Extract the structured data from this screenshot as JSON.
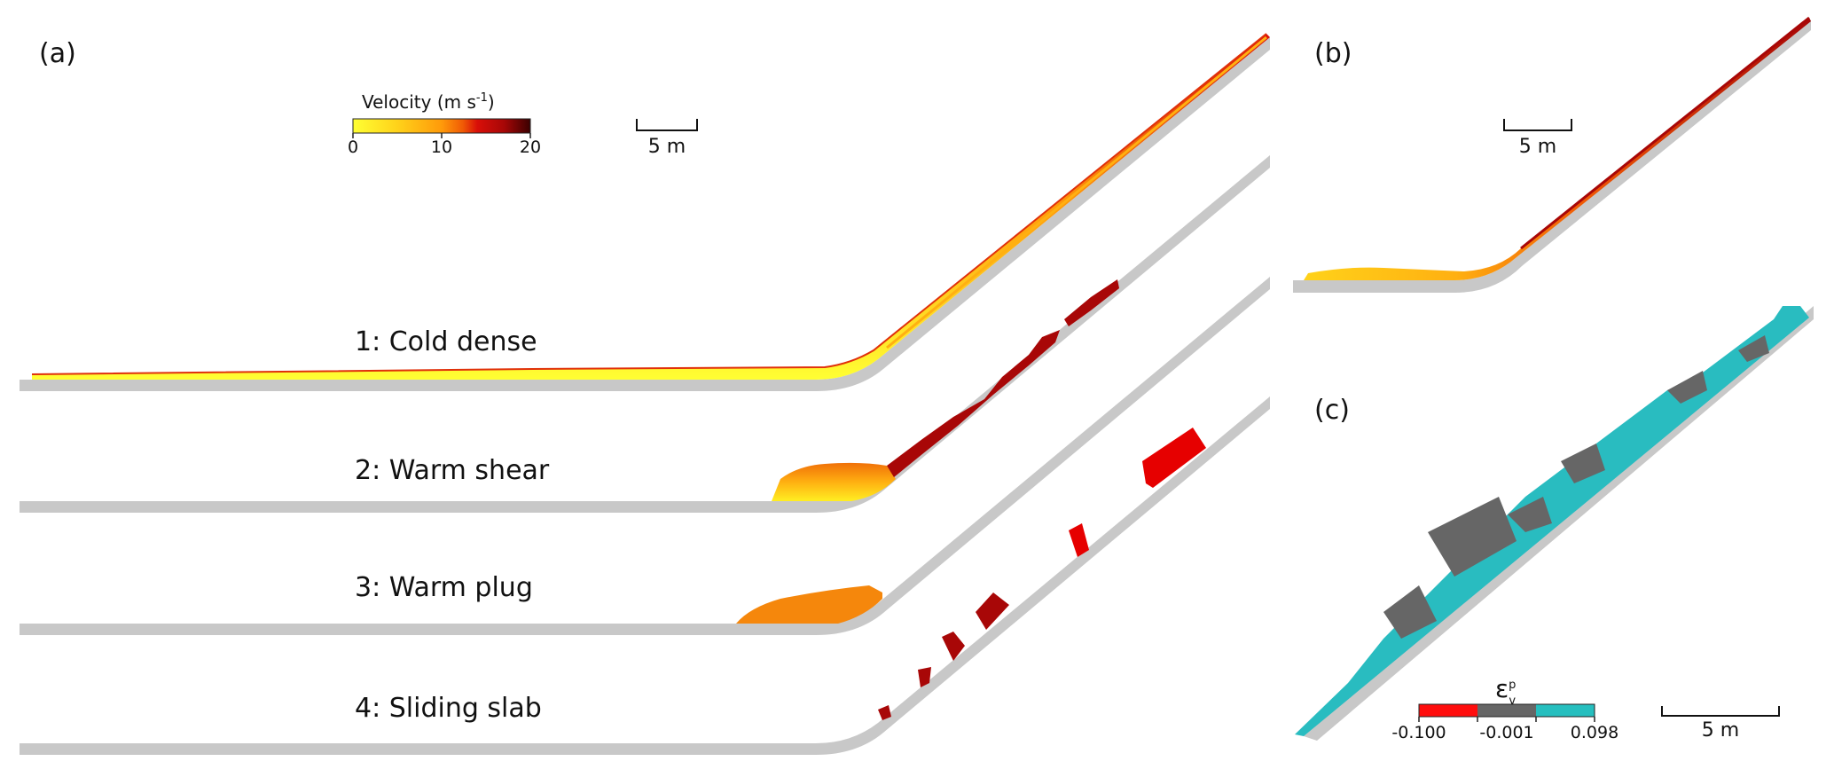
{
  "panels": {
    "a": "(a)",
    "b": "(b)",
    "c": "(c)"
  },
  "cases": [
    "1: Cold dense",
    "2: Warm shear",
    "3: Warm plug",
    "4: Sliding slab"
  ],
  "velocity_colorbar": {
    "title": "Velocity (m s",
    "title_sup": "-1",
    "title_end": ")",
    "ticks": [
      "0",
      "10",
      "20"
    ],
    "colors": [
      "#ffff33",
      "#ffd21a",
      "#ff9a0a",
      "#f05a05",
      "#d90f08",
      "#a80707",
      "#5a0000"
    ]
  },
  "strain_colorbar": {
    "symbol": "ε",
    "sup": "p",
    "sub": "v",
    "ticks": [
      "-0.100",
      "-0.001",
      "0.098"
    ],
    "colors": [
      "#ff0d0d",
      "#666666",
      "#26bfbf"
    ]
  },
  "scale_bars": {
    "a": "5 m",
    "b": "5 m",
    "c": "5 m"
  },
  "colors": {
    "slope": "#c8c8c8",
    "plug": "#f5870c",
    "slab": "#e60000",
    "dark_red": "#a80707",
    "teal": "#29bcc0",
    "gray_particles": "#666666"
  }
}
